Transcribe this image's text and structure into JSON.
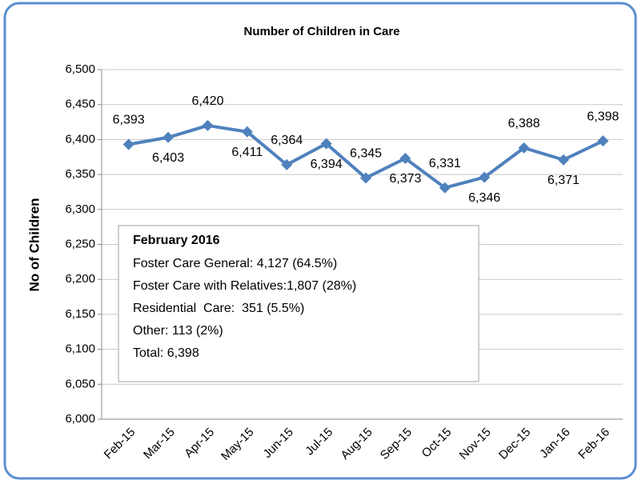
{
  "chart_data": {
    "type": "line",
    "title": "Number of Children in Care",
    "y_label": "No of Children",
    "categories": [
      "Feb-15",
      "Mar-15",
      "Apr-15",
      "May-15",
      "Jun-15",
      "Jul-15",
      "Aug-15",
      "Sep-15",
      "Oct-15",
      "Nov-15",
      "Dec-15",
      "Jan-16",
      "Feb-16"
    ],
    "series": [
      {
        "name": "Number of Children in Care",
        "color": "#4f81bd",
        "values": [
          6393,
          6403,
          6420,
          6411,
          6364,
          6394,
          6345,
          6373,
          6331,
          6346,
          6388,
          6371,
          6398
        ],
        "value_labels": [
          "6,393",
          "6,403",
          "6,420",
          "6,411",
          "6,364",
          "6,394",
          "6,345",
          "6,373",
          "6,331",
          "6,346",
          "6,388",
          "6,371",
          "6,398"
        ]
      }
    ],
    "ylim": [
      6000,
      6500
    ],
    "yticks": [
      {
        "value": 6000,
        "label": "6,000"
      },
      {
        "value": 6050,
        "label": "6,050"
      },
      {
        "value": 6100,
        "label": "6,100"
      },
      {
        "value": 6150,
        "label": "6,150"
      },
      {
        "value": 6200,
        "label": "6,200"
      },
      {
        "value": 6250,
        "label": "6,250"
      },
      {
        "value": 6300,
        "label": "6,300"
      },
      {
        "value": 6350,
        "label": "6,350"
      },
      {
        "value": 6400,
        "label": "6,400"
      },
      {
        "value": 6450,
        "label": "6,450"
      },
      {
        "value": 6500,
        "label": "6,500"
      }
    ],
    "grid": true,
    "annotation": {
      "title": "February 2016",
      "lines": [
        "Foster Care General: 4,127 (64.5%)",
        "Foster Care with Relatives:1,807 (28%)",
        "Residential  Care:  351 (5.5%)",
        "Other: 113 (2%)",
        "Total: 6,398"
      ]
    }
  }
}
